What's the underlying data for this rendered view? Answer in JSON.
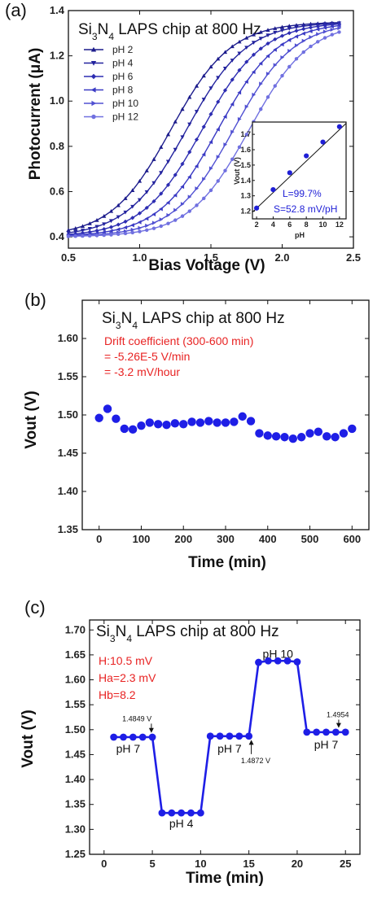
{
  "chart_data": [
    {
      "panel": "(a)",
      "type": "line",
      "title": "Si3N4 LAPS chip at 800 Hz",
      "title_parts": {
        "pre": "Si",
        "sub1": "3",
        "mid": "N",
        "sub2": "4",
        "post": " LAPS chip at 800 Hz"
      },
      "xlabel": "Bias Voltage (V)",
      "ylabel": "Photocurrent (μA)",
      "xlim": [
        0.5,
        2.5
      ],
      "ylim": [
        0.35,
        1.4
      ],
      "xticks": [
        "0.5",
        "1.0",
        "1.5",
        "2.0",
        "2.5"
      ],
      "yticks": [
        "0.4",
        "0.6",
        "0.8",
        "1.0",
        "1.2",
        "1.4"
      ],
      "legend_position": "top-left",
      "series": [
        {
          "name": "pH 2",
          "marker": "triangle-up",
          "color": "#1c1c8c",
          "imin": 0.4,
          "imax": 1.35,
          "v_half": 1.22,
          "width": 0.21
        },
        {
          "name": "pH 4",
          "marker": "triangle-down",
          "color": "#23239e",
          "imin": 0.4,
          "imax": 1.35,
          "v_half": 1.33,
          "width": 0.21
        },
        {
          "name": "pH 6",
          "marker": "diamond",
          "color": "#2d2db2",
          "imin": 0.4,
          "imax": 1.35,
          "v_half": 1.44,
          "width": 0.21
        },
        {
          "name": "pH 8",
          "marker": "triangle-left",
          "color": "#3a3ac4",
          "imin": 0.4,
          "imax": 1.35,
          "v_half": 1.55,
          "width": 0.21
        },
        {
          "name": "pH 10",
          "marker": "triangle-right",
          "color": "#5050d2",
          "imin": 0.4,
          "imax": 1.35,
          "v_half": 1.66,
          "width": 0.21
        },
        {
          "name": "pH 12",
          "marker": "circle",
          "color": "#7070e0",
          "imin": 0.4,
          "imax": 1.35,
          "v_half": 1.77,
          "width": 0.21
        }
      ],
      "inset": {
        "type": "scatter",
        "xlabel": "pH",
        "ylabel": "Vout (V)",
        "x": [
          2,
          4,
          6,
          8,
          10,
          12
        ],
        "y": [
          1.22,
          1.34,
          1.45,
          1.56,
          1.65,
          1.75
        ],
        "xlim": [
          1.5,
          12.8
        ],
        "ylim": [
          1.15,
          1.78
        ],
        "xticks": [
          "2",
          "4",
          "6",
          "8",
          "10",
          "12"
        ],
        "yticks": [
          "1.2",
          "1.3",
          "1.4",
          "1.5",
          "1.6",
          "1.7"
        ],
        "note_l": "L=99.7%",
        "note_s": "S=52.8 mV/pH"
      }
    },
    {
      "panel": "(b)",
      "type": "scatter",
      "title": "Si3N4 LAPS chip at 800 Hz",
      "title_parts": {
        "pre": "Si",
        "sub1": "3",
        "mid": "N",
        "sub2": "4",
        "post": " LAPS chip at 800 Hz"
      },
      "xlabel": "Time (min)",
      "ylabel": "Vout (V)",
      "xlim": [
        -40,
        640
      ],
      "ylim": [
        1.35,
        1.65
      ],
      "xticks": [
        "0",
        "100",
        "200",
        "300",
        "400",
        "500",
        "600"
      ],
      "yticks": [
        "1.35",
        "1.40",
        "1.45",
        "1.50",
        "1.55",
        "1.60"
      ],
      "notes": [
        "Drift coefficient (300-600 min)",
        "= -5.26E-5 V/min",
        "= -3.2 mV/hour"
      ],
      "x": [
        0,
        20,
        40,
        60,
        80,
        100,
        120,
        140,
        160,
        180,
        200,
        220,
        240,
        260,
        280,
        300,
        320,
        340,
        360,
        380,
        400,
        420,
        440,
        460,
        480,
        500,
        520,
        540,
        560,
        580,
        600
      ],
      "y": [
        1.496,
        1.508,
        1.495,
        1.482,
        1.481,
        1.486,
        1.49,
        1.488,
        1.487,
        1.489,
        1.488,
        1.491,
        1.49,
        1.492,
        1.49,
        1.49,
        1.491,
        1.498,
        1.492,
        1.476,
        1.473,
        1.472,
        1.471,
        1.469,
        1.471,
        1.476,
        1.478,
        1.472,
        1.471,
        1.476,
        1.482
      ]
    },
    {
      "panel": "(c)",
      "type": "line",
      "title": "Si3N4 LAPS chip at 800 Hz",
      "title_parts": {
        "pre": "Si",
        "sub1": "3",
        "mid": "N",
        "sub2": "4",
        "post": " LAPS chip at 800 Hz"
      },
      "xlabel": "Time (min)",
      "ylabel": "Vout (V)",
      "xlim": [
        -1.5,
        26.5
      ],
      "ylim": [
        1.25,
        1.72
      ],
      "xticks": [
        "0",
        "5",
        "10",
        "15",
        "20",
        "25"
      ],
      "yticks": [
        "1.25",
        "1.30",
        "1.35",
        "1.40",
        "1.45",
        "1.50",
        "1.55",
        "1.60",
        "1.65",
        "1.70"
      ],
      "notes": [
        "H:10.5 mV",
        "Ha=2.3 mV",
        "Hb=8.2"
      ],
      "x": [
        1,
        2,
        3,
        4,
        5,
        6,
        7,
        8,
        9,
        10,
        11,
        12,
        13,
        14,
        15,
        16,
        17,
        18,
        19,
        20,
        21,
        22,
        23,
        24,
        25
      ],
      "y": [
        1.485,
        1.485,
        1.485,
        1.485,
        1.485,
        1.333,
        1.333,
        1.333,
        1.333,
        1.333,
        1.487,
        1.487,
        1.487,
        1.487,
        1.487,
        1.635,
        1.638,
        1.638,
        1.638,
        1.636,
        1.495,
        1.495,
        1.495,
        1.495,
        1.495
      ],
      "labels": [
        {
          "text": "pH 7",
          "x": 2.5,
          "y": 1.462
        },
        {
          "text": "pH 4",
          "x": 8,
          "y": 1.312
        },
        {
          "text": "pH 7",
          "x": 13,
          "y": 1.462
        },
        {
          "text": "pH 10",
          "x": 18,
          "y": 1.652
        },
        {
          "text": "pH 7",
          "x": 23,
          "y": 1.47
        }
      ],
      "small_annotations": [
        {
          "text": "1.4849 V",
          "x": 3.4,
          "y": 1.517,
          "tip_y": 1.487
        },
        {
          "text": "1.4872 V",
          "x": 15.7,
          "y": 1.433,
          "tip_y": 1.486
        },
        {
          "text": "1.4954",
          "x": 24.2,
          "y": 1.525,
          "tip_y": 1.497
        }
      ]
    }
  ]
}
